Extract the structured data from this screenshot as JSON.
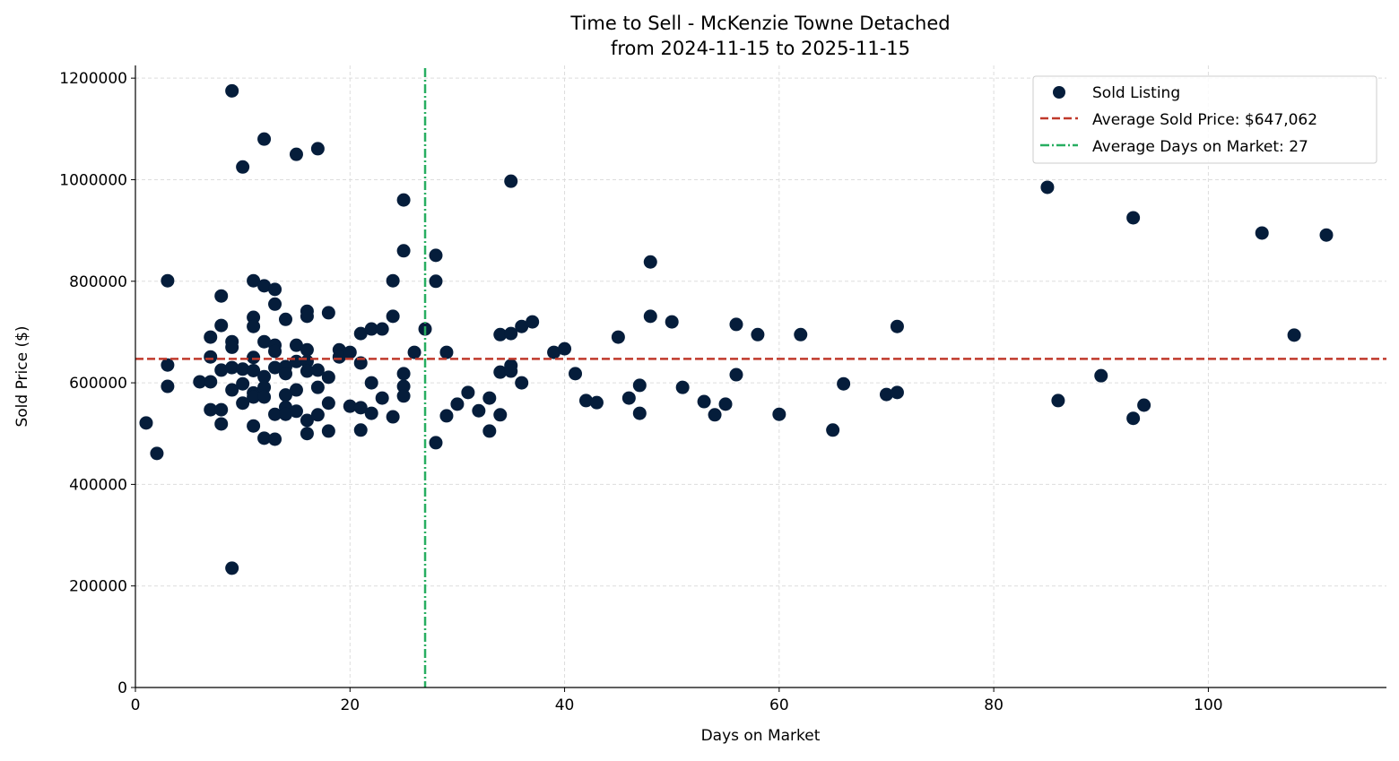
{
  "chart_data": {
    "type": "scatter",
    "title": "Time to Sell - McKenzie Towne Detached",
    "subtitle": "from 2024-11-15 to 2025-11-15",
    "xlabel": "Days on Market",
    "ylabel": "Sold Price ($)",
    "xlim": [
      0,
      116.6
    ],
    "ylim": [
      0,
      1225000
    ],
    "xticks": [
      0,
      20,
      40,
      60,
      80,
      100
    ],
    "yticks": [
      0,
      200000,
      400000,
      600000,
      800000,
      1000000,
      1200000
    ],
    "grid": true,
    "legend_placement": "top-right",
    "colors": {
      "points": "#051d3b",
      "avg_price": "#c0392b",
      "avg_days": "#27ae60"
    },
    "legend": [
      "Sold Listing",
      "Average Sold Price: $647,062",
      "Average Days on Market: 27"
    ],
    "avg_price": 647062,
    "avg_days": 27,
    "series": [
      {
        "name": "Sold Listing",
        "points": [
          [
            1,
            521000
          ],
          [
            2,
            461000
          ],
          [
            3,
            801000
          ],
          [
            3,
            635000
          ],
          [
            3,
            593000
          ],
          [
            6,
            602000
          ],
          [
            7,
            602000
          ],
          [
            7,
            690000
          ],
          [
            7,
            651000
          ],
          [
            7,
            547000
          ],
          [
            8,
            771000
          ],
          [
            8,
            713000
          ],
          [
            8,
            625000
          ],
          [
            8,
            547000
          ],
          [
            8,
            519000
          ],
          [
            9,
            1175000
          ],
          [
            9,
            681000
          ],
          [
            9,
            670000
          ],
          [
            9,
            630000
          ],
          [
            9,
            586000
          ],
          [
            9,
            235000
          ],
          [
            10,
            1025000
          ],
          [
            10,
            627000
          ],
          [
            10,
            598000
          ],
          [
            10,
            560000
          ],
          [
            11,
            801000
          ],
          [
            11,
            729000
          ],
          [
            11,
            711000
          ],
          [
            11,
            650000
          ],
          [
            11,
            624000
          ],
          [
            11,
            580000
          ],
          [
            11,
            572000
          ],
          [
            11,
            515000
          ],
          [
            12,
            1080000
          ],
          [
            12,
            791000
          ],
          [
            12,
            681000
          ],
          [
            12,
            612000
          ],
          [
            12,
            591000
          ],
          [
            12,
            572000
          ],
          [
            12,
            491000
          ],
          [
            13,
            784000
          ],
          [
            13,
            755000
          ],
          [
            13,
            674000
          ],
          [
            13,
            662000
          ],
          [
            13,
            630000
          ],
          [
            13,
            538000
          ],
          [
            13,
            489000
          ],
          [
            14,
            725000
          ],
          [
            14,
            632000
          ],
          [
            14,
            618000
          ],
          [
            14,
            576000
          ],
          [
            14,
            552000
          ],
          [
            14,
            538000
          ],
          [
            15,
            1050000
          ],
          [
            15,
            674000
          ],
          [
            15,
            642000
          ],
          [
            15,
            586000
          ],
          [
            15,
            544000
          ],
          [
            16,
            741000
          ],
          [
            16,
            731000
          ],
          [
            16,
            665000
          ],
          [
            16,
            642000
          ],
          [
            16,
            623000
          ],
          [
            16,
            526000
          ],
          [
            16,
            500000
          ],
          [
            17,
            1061000
          ],
          [
            17,
            625000
          ],
          [
            17,
            591000
          ],
          [
            17,
            537000
          ],
          [
            18,
            738000
          ],
          [
            18,
            611000
          ],
          [
            18,
            560000
          ],
          [
            18,
            505000
          ],
          [
            19,
            665000
          ],
          [
            19,
            651000
          ],
          [
            20,
            660000
          ],
          [
            20,
            554000
          ],
          [
            21,
            697000
          ],
          [
            21,
            639000
          ],
          [
            21,
            551000
          ],
          [
            21,
            507000
          ],
          [
            22,
            706000
          ],
          [
            22,
            600000
          ],
          [
            22,
            540000
          ],
          [
            23,
            706000
          ],
          [
            23,
            570000
          ],
          [
            24,
            801000
          ],
          [
            24,
            731000
          ],
          [
            24,
            533000
          ],
          [
            25,
            960000
          ],
          [
            25,
            860000
          ],
          [
            25,
            618000
          ],
          [
            25,
            593000
          ],
          [
            25,
            574000
          ],
          [
            26,
            660000
          ],
          [
            27,
            706000
          ],
          [
            28,
            851000
          ],
          [
            28,
            800000
          ],
          [
            28,
            482000
          ],
          [
            29,
            660000
          ],
          [
            29,
            535000
          ],
          [
            30,
            558000
          ],
          [
            31,
            581000
          ],
          [
            32,
            545000
          ],
          [
            33,
            570000
          ],
          [
            33,
            505000
          ],
          [
            34,
            695000
          ],
          [
            34,
            621000
          ],
          [
            34,
            537000
          ],
          [
            35,
            997000
          ],
          [
            35,
            697000
          ],
          [
            35,
            634000
          ],
          [
            35,
            623000
          ],
          [
            36,
            711000
          ],
          [
            36,
            600000
          ],
          [
            37,
            720000
          ],
          [
            39,
            660000
          ],
          [
            40,
            667000
          ],
          [
            41,
            618000
          ],
          [
            42,
            565000
          ],
          [
            43,
            561000
          ],
          [
            45,
            690000
          ],
          [
            46,
            570000
          ],
          [
            47,
            595000
          ],
          [
            47,
            540000
          ],
          [
            48,
            838000
          ],
          [
            48,
            731000
          ],
          [
            50,
            720000
          ],
          [
            51,
            591000
          ],
          [
            53,
            563000
          ],
          [
            54,
            537000
          ],
          [
            55,
            558000
          ],
          [
            56,
            715000
          ],
          [
            56,
            616000
          ],
          [
            58,
            695000
          ],
          [
            60,
            538000
          ],
          [
            62,
            695000
          ],
          [
            65,
            507000
          ],
          [
            66,
            598000
          ],
          [
            70,
            577000
          ],
          [
            71,
            711000
          ],
          [
            71,
            581000
          ],
          [
            85,
            985000
          ],
          [
            86,
            565000
          ],
          [
            90,
            614000
          ],
          [
            93,
            925000
          ],
          [
            93,
            530000
          ],
          [
            94,
            556000
          ],
          [
            105,
            895000
          ],
          [
            108,
            694000
          ],
          [
            111,
            891000
          ]
        ]
      }
    ]
  }
}
